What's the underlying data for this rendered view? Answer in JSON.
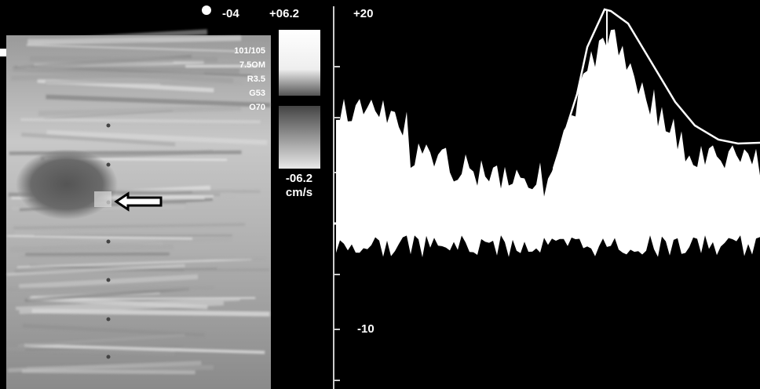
{
  "header": {
    "marker": "-04",
    "scale_max": "+06.2"
  },
  "settings": [
    "101/105",
    "7.5OM",
    "R3.5",
    "G53",
    "O70"
  ],
  "color_scale": {
    "min": "-06.2",
    "unit": "cm/s"
  },
  "spectrum": {
    "axis_labels": [
      "+20",
      "-10"
    ]
  }
}
